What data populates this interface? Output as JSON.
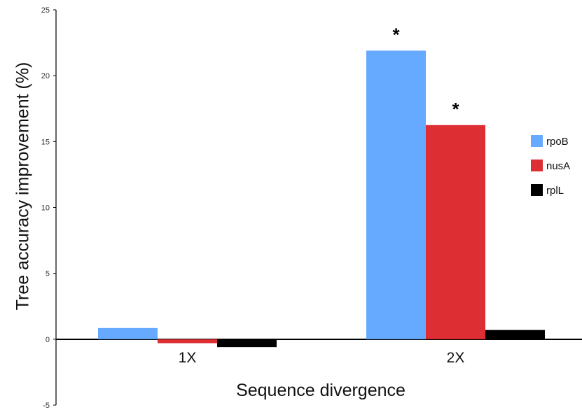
{
  "chart_data": {
    "type": "bar",
    "title": "",
    "xlabel": "Sequence divergence",
    "ylabel": "Tree accuracy improvement (%)",
    "ylim": [
      -5,
      25
    ],
    "yticks": [
      "25",
      "20",
      "15",
      "10",
      "5",
      "0",
      "-5"
    ],
    "categories": [
      "1X",
      "2X"
    ],
    "series": [
      {
        "name": "rpoB",
        "color": "#66aaff",
        "values": [
          0.85,
          21.9
        ]
      },
      {
        "name": "nusA",
        "color": "#dd2e33",
        "values": [
          -0.3,
          16.25
        ]
      },
      {
        "name": "rplL",
        "color": "#000000",
        "values": [
          -0.6,
          0.7
        ]
      }
    ],
    "significance": [
      {
        "category": "2X",
        "series": "rpoB",
        "label": "*"
      },
      {
        "category": "2X",
        "series": "nusA",
        "label": "*"
      }
    ],
    "legend_position": "right",
    "grid": false
  }
}
